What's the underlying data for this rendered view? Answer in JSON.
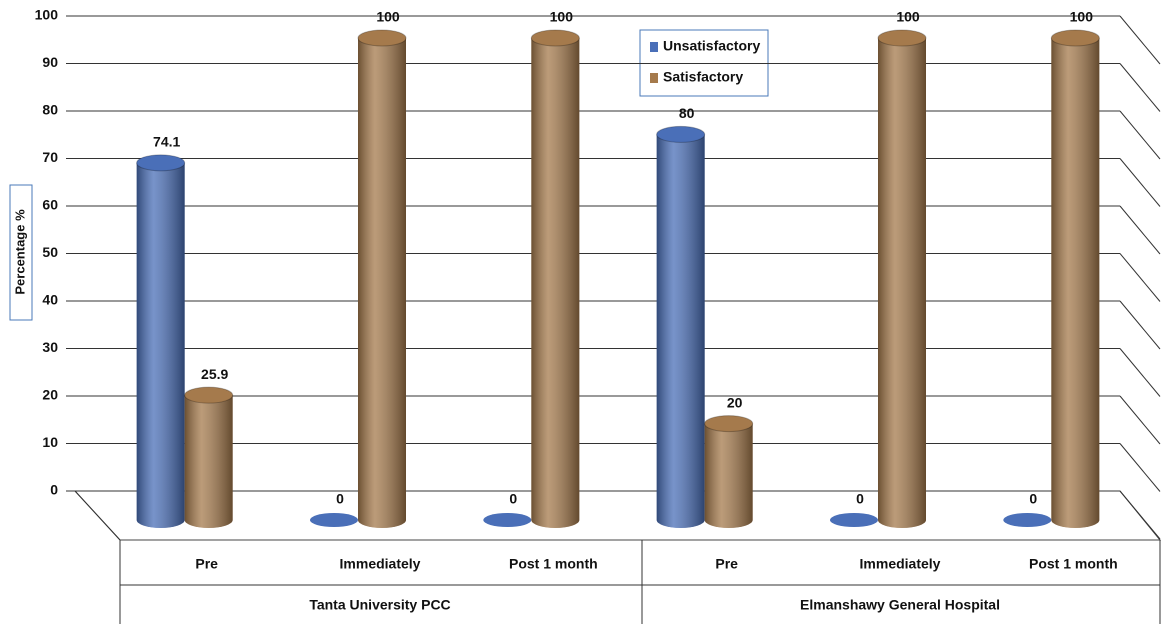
{
  "chart_data": {
    "type": "bar3d",
    "y_label": "Percentage %",
    "categories": [
      "Pre",
      "Immediately",
      "Post 1 month",
      "Pre",
      "Immediately",
      "Post 1 month"
    ],
    "groups": [
      {
        "name": "Tanta University PCC",
        "size": 3
      },
      {
        "name": "Elmanshawy General Hospital",
        "size": 3
      }
    ],
    "series": [
      {
        "name": "Unsatisfactory",
        "color": "#4a6fb8",
        "values": [
          74.1,
          0,
          0,
          80,
          0,
          0
        ]
      },
      {
        "name": "Satisfactory",
        "color": "#a57a4c",
        "values": [
          25.9,
          100,
          100,
          20,
          100,
          100
        ]
      }
    ],
    "ylim": [
      0,
      100
    ],
    "yticks": [
      0,
      10,
      20,
      30,
      40,
      50,
      60,
      70,
      80,
      90,
      100
    ],
    "grid": true,
    "legend": "top-center"
  }
}
